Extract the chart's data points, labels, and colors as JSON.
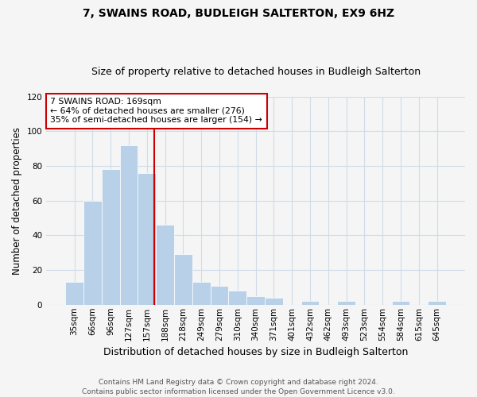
{
  "title1": "7, SWAINS ROAD, BUDLEIGH SALTERTON, EX9 6HZ",
  "title2": "Size of property relative to detached houses in Budleigh Salterton",
  "xlabel": "Distribution of detached houses by size in Budleigh Salterton",
  "ylabel": "Number of detached properties",
  "bin_labels": [
    "35sqm",
    "66sqm",
    "96sqm",
    "127sqm",
    "157sqm",
    "188sqm",
    "218sqm",
    "249sqm",
    "279sqm",
    "310sqm",
    "340sqm",
    "371sqm",
    "401sqm",
    "432sqm",
    "462sqm",
    "493sqm",
    "523sqm",
    "554sqm",
    "584sqm",
    "615sqm",
    "645sqm"
  ],
  "bar_values": [
    13,
    60,
    78,
    92,
    76,
    46,
    29,
    13,
    11,
    8,
    5,
    4,
    0,
    2,
    0,
    2,
    0,
    0,
    2,
    0,
    2
  ],
  "bar_color": "#b8d0e8",
  "vline_color": "#cc0000",
  "vline_pos": 4.39,
  "annotation_text": "7 SWAINS ROAD: 169sqm\n← 64% of detached houses are smaller (276)\n35% of semi-detached houses are larger (154) →",
  "annotation_box_color": "white",
  "annotation_border_color": "#cc0000",
  "ylim": [
    0,
    120
  ],
  "yticks": [
    0,
    20,
    40,
    60,
    80,
    100,
    120
  ],
  "footer": "Contains HM Land Registry data © Crown copyright and database right 2024.\nContains public sector information licensed under the Open Government Licence v3.0.",
  "bg_color": "#f5f5f5",
  "grid_color": "#d0dce8",
  "figsize": [
    6.0,
    5.0
  ],
  "dpi": 100
}
